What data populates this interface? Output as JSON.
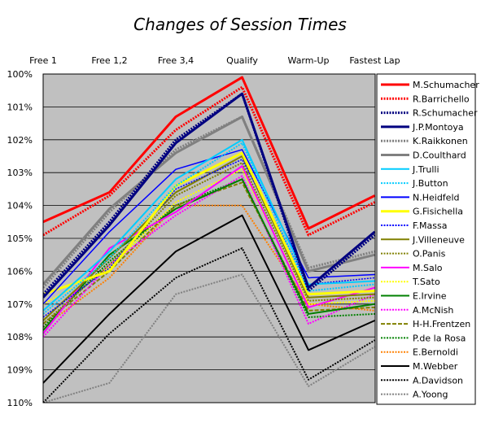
{
  "chart_data": {
    "type": "line",
    "title": "Changes of Session Times",
    "categories": [
      "Free 1",
      "Free 1,2",
      "Free 3,4",
      "Qualify",
      "Warm-Up",
      "Fastest Lap"
    ],
    "y_tick_labels": [
      "100%",
      "101%",
      "102%",
      "103%",
      "104%",
      "105%",
      "106%",
      "107%",
      "108%",
      "109%",
      "110%"
    ],
    "ylim": [
      100,
      110
    ],
    "y_inverted": true,
    "grid": true,
    "legend_position": "right",
    "plot_background": "#c0c0c0",
    "series": [
      {
        "name": "M.Schumacher",
        "values": [
          104.5,
          103.6,
          101.3,
          100.1,
          104.7,
          103.7
        ],
        "color": "#ff0000",
        "style": "solid",
        "width": 3
      },
      {
        "name": "R.Barrichello",
        "values": [
          104.9,
          103.7,
          101.7,
          100.4,
          104.9,
          103.9
        ],
        "color": "#ff0000",
        "style": "dotted",
        "width": 3
      },
      {
        "name": "R.Schumacher",
        "values": [
          106.7,
          104.5,
          102.0,
          100.6,
          106.6,
          104.9
        ],
        "color": "#000080",
        "style": "dotted",
        "width": 3
      },
      {
        "name": "J.P.Montoya",
        "values": [
          106.8,
          104.6,
          102.1,
          100.6,
          106.5,
          104.8
        ],
        "color": "#000080",
        "style": "solid",
        "width": 3
      },
      {
        "name": "K.Raikkonen",
        "values": [
          106.5,
          104.2,
          102.3,
          101.3,
          105.9,
          105.4
        ],
        "color": "#808080",
        "style": "dotted",
        "width": 3
      },
      {
        "name": "D.Coulthard",
        "values": [
          106.4,
          104.1,
          102.4,
          101.3,
          106.0,
          105.5
        ],
        "color": "#808080",
        "style": "solid",
        "width": 3
      },
      {
        "name": "J.Trulli",
        "values": [
          107.2,
          105.4,
          103.2,
          102.0,
          106.4,
          106.3
        ],
        "color": "#00ccff",
        "style": "solid",
        "width": 2
      },
      {
        "name": "J.Button",
        "values": [
          107.3,
          105.6,
          103.4,
          102.1,
          106.6,
          106.4
        ],
        "color": "#00ccff",
        "style": "dotted",
        "width": 2
      },
      {
        "name": "N.Heidfeld",
        "values": [
          107.0,
          104.8,
          102.9,
          102.3,
          106.2,
          106.1
        ],
        "color": "#0000ff",
        "style": "solid",
        "width": 1.5
      },
      {
        "name": "G.Fisichella",
        "values": [
          106.7,
          106.0,
          103.4,
          102.4,
          106.7,
          106.6
        ],
        "color": "#ffff00",
        "style": "solid",
        "width": 3
      },
      {
        "name": "F.Massa",
        "values": [
          107.4,
          105.9,
          103.5,
          102.6,
          106.4,
          106.2
        ],
        "color": "#0000ff",
        "style": "dotted",
        "width": 1.5
      },
      {
        "name": "J.Villeneuve",
        "values": [
          107.5,
          105.6,
          103.6,
          102.5,
          106.8,
          106.7
        ],
        "color": "#808000",
        "style": "solid",
        "width": 2
      },
      {
        "name": "O.Panis",
        "values": [
          107.6,
          105.8,
          103.7,
          102.7,
          106.9,
          106.8
        ],
        "color": "#808000",
        "style": "dotted",
        "width": 2
      },
      {
        "name": "M.Salo",
        "values": [
          107.9,
          105.3,
          104.2,
          102.8,
          107.1,
          106.5
        ],
        "color": "#ff00ff",
        "style": "solid",
        "width": 2
      },
      {
        "name": "T.Sato",
        "values": [
          107.0,
          105.9,
          103.9,
          102.9,
          107.0,
          106.9
        ],
        "color": "#ffff00",
        "style": "dotted",
        "width": 2
      },
      {
        "name": "E.Irvine",
        "values": [
          107.8,
          105.5,
          104.1,
          103.2,
          107.3,
          107.0
        ],
        "color": "#008000",
        "style": "solid",
        "width": 2
      },
      {
        "name": "A.McNish",
        "values": [
          108.0,
          105.8,
          104.3,
          103.1,
          107.6,
          106.7
        ],
        "color": "#ff00ff",
        "style": "dotted",
        "width": 2
      },
      {
        "name": "H-H.Frentzen",
        "values": [
          107.6,
          106.0,
          104.0,
          103.3,
          107.2,
          107.1
        ],
        "color": "#808000",
        "style": "dashed",
        "width": 2
      },
      {
        "name": "P.de la Rosa",
        "values": [
          107.7,
          105.7,
          104.0,
          103.2,
          107.4,
          107.3
        ],
        "color": "#008000",
        "style": "dotted",
        "width": 2
      },
      {
        "name": "E.Bernoldi",
        "values": [
          107.7,
          106.2,
          104.0,
          104.0,
          107.0,
          107.2
        ],
        "color": "#ff8000",
        "style": "dotted",
        "width": 2
      },
      {
        "name": "M.Webber",
        "values": [
          109.4,
          107.3,
          105.4,
          104.3,
          108.4,
          107.5
        ],
        "color": "#000000",
        "style": "solid",
        "width": 2
      },
      {
        "name": "A.Davidson",
        "values": [
          110.0,
          107.9,
          106.2,
          105.3,
          109.3,
          108.1
        ],
        "color": "#000000",
        "style": "dotted",
        "width": 2
      },
      {
        "name": "A.Yoong",
        "values": [
          110.0,
          109.4,
          106.7,
          106.1,
          109.5,
          108.3
        ],
        "color": "#808080",
        "style": "dotted",
        "width": 2
      }
    ]
  }
}
